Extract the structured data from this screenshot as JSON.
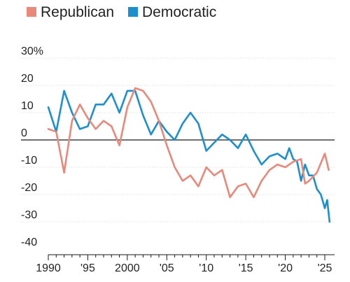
{
  "chart_data": {
    "type": "line",
    "title": "",
    "xlabel": "",
    "ylabel": "",
    "ylim": [
      -40,
      30
    ],
    "xlim": [
      1989,
      2026
    ],
    "y_ticks": [
      {
        "value": 30,
        "label": "30%"
      },
      {
        "value": 20,
        "label": "20"
      },
      {
        "value": 10,
        "label": "10"
      },
      {
        "value": 0,
        "label": "0"
      },
      {
        "value": -10,
        "label": "-10"
      },
      {
        "value": -20,
        "label": "-20"
      },
      {
        "value": -30,
        "label": "-30"
      },
      {
        "value": -40,
        "label": "-40"
      }
    ],
    "x_ticks": [
      {
        "value": 1990,
        "label": "1990"
      },
      {
        "value": 1995,
        "label": "'95"
      },
      {
        "value": 2000,
        "label": "2000"
      },
      {
        "value": 2005,
        "label": "'05"
      },
      {
        "value": 2010,
        "label": "'10"
      },
      {
        "value": 2015,
        "label": "'15"
      },
      {
        "value": 2020,
        "label": "'20"
      },
      {
        "value": 2025,
        "label": "'25"
      }
    ],
    "grid": true,
    "legend_position": "top-left",
    "series": [
      {
        "name": "Republican",
        "color": "#e8897b",
        "x": [
          1990,
          1991,
          1992,
          1993,
          1994,
          1995,
          1996,
          1997,
          1998,
          1999,
          2000,
          2001,
          2002,
          2003,
          2004,
          2005,
          2006,
          2007,
          2008,
          2009,
          2010,
          2011,
          2012,
          2013,
          2014,
          2015,
          2016,
          2017,
          2018,
          2019,
          2020,
          2021,
          2022,
          2022.5,
          2023,
          2024,
          2025,
          2025.5
        ],
        "values": [
          4,
          3,
          -12,
          7,
          13,
          8,
          4,
          7,
          5,
          -2,
          12,
          19,
          18,
          14,
          7,
          -2,
          -10,
          -15,
          -13,
          -17,
          -10,
          -13,
          -11,
          -21,
          -17,
          -16,
          -21,
          -15,
          -11,
          -9,
          -10,
          -8,
          -7,
          -16,
          -15,
          -12,
          -5,
          -11
        ]
      },
      {
        "name": "Democratic",
        "color": "#1d8fcf",
        "x": [
          1990,
          1991,
          1992,
          1993,
          1994,
          1995,
          1996,
          1997,
          1998,
          1999,
          2000,
          2001,
          2002,
          2003,
          2004,
          2005,
          2006,
          2007,
          2008,
          2009,
          2010,
          2011,
          2012,
          2013,
          2014,
          2015,
          2016,
          2017,
          2018,
          2019,
          2020,
          2020.5,
          2021,
          2021.5,
          2022,
          2022.5,
          2023,
          2023.5,
          2024,
          2024.5,
          2025,
          2025.3,
          2025.6
        ],
        "values": [
          12,
          3,
          18,
          10,
          4,
          5,
          13,
          13,
          17,
          10,
          18,
          18,
          9,
          2,
          7,
          3,
          0,
          6,
          10,
          6,
          -4,
          -1,
          2,
          0,
          -3,
          2,
          -4,
          -9,
          -6,
          -5,
          -7,
          -3,
          -7,
          -8,
          -15,
          -9,
          -13,
          -13,
          -18,
          -20,
          -25,
          -22,
          -30
        ]
      }
    ]
  }
}
